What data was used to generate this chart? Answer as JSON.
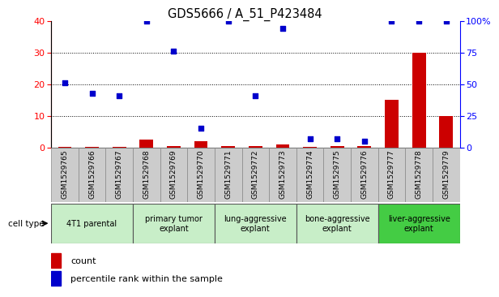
{
  "title": "GDS5666 / A_51_P423484",
  "samples": [
    "GSM1529765",
    "GSM1529766",
    "GSM1529767",
    "GSM1529768",
    "GSM1529769",
    "GSM1529770",
    "GSM1529771",
    "GSM1529772",
    "GSM1529773",
    "GSM1529774",
    "GSM1529775",
    "GSM1529776",
    "GSM1529777",
    "GSM1529778",
    "GSM1529779"
  ],
  "counts": [
    0.2,
    0.2,
    0.3,
    2.5,
    0.4,
    2.0,
    0.4,
    0.4,
    1.0,
    0.2,
    0.4,
    0.4,
    15.0,
    30.0,
    10.0
  ],
  "percentiles": [
    51,
    43,
    41,
    100,
    76,
    15,
    100,
    41,
    94,
    7,
    7,
    5,
    100,
    100,
    100
  ],
  "cell_types": [
    {
      "label": "4T1 parental",
      "start": 0,
      "end": 3,
      "color": "#c8eec8"
    },
    {
      "label": "primary tumor\nexplant",
      "start": 3,
      "end": 6,
      "color": "#c8eec8"
    },
    {
      "label": "lung-aggressive\nexplant",
      "start": 6,
      "end": 9,
      "color": "#c8eec8"
    },
    {
      "label": "bone-aggressive\nexplant",
      "start": 9,
      "end": 12,
      "color": "#c8eec8"
    },
    {
      "label": "liver-aggressive\nexplant",
      "start": 12,
      "end": 15,
      "color": "#44cc44"
    }
  ],
  "bar_color": "#cc0000",
  "dot_color": "#0000cc",
  "left_ylim": [
    0,
    40
  ],
  "right_ylim": [
    0,
    100
  ],
  "left_yticks": [
    0,
    10,
    20,
    30,
    40
  ],
  "right_yticks": [
    0,
    25,
    50,
    75,
    100
  ],
  "right_yticklabels": [
    "0",
    "25",
    "50",
    "75",
    "100%"
  ],
  "legend_count_label": "count",
  "legend_percentile_label": "percentile rank within the sample",
  "cell_type_label": "cell type"
}
